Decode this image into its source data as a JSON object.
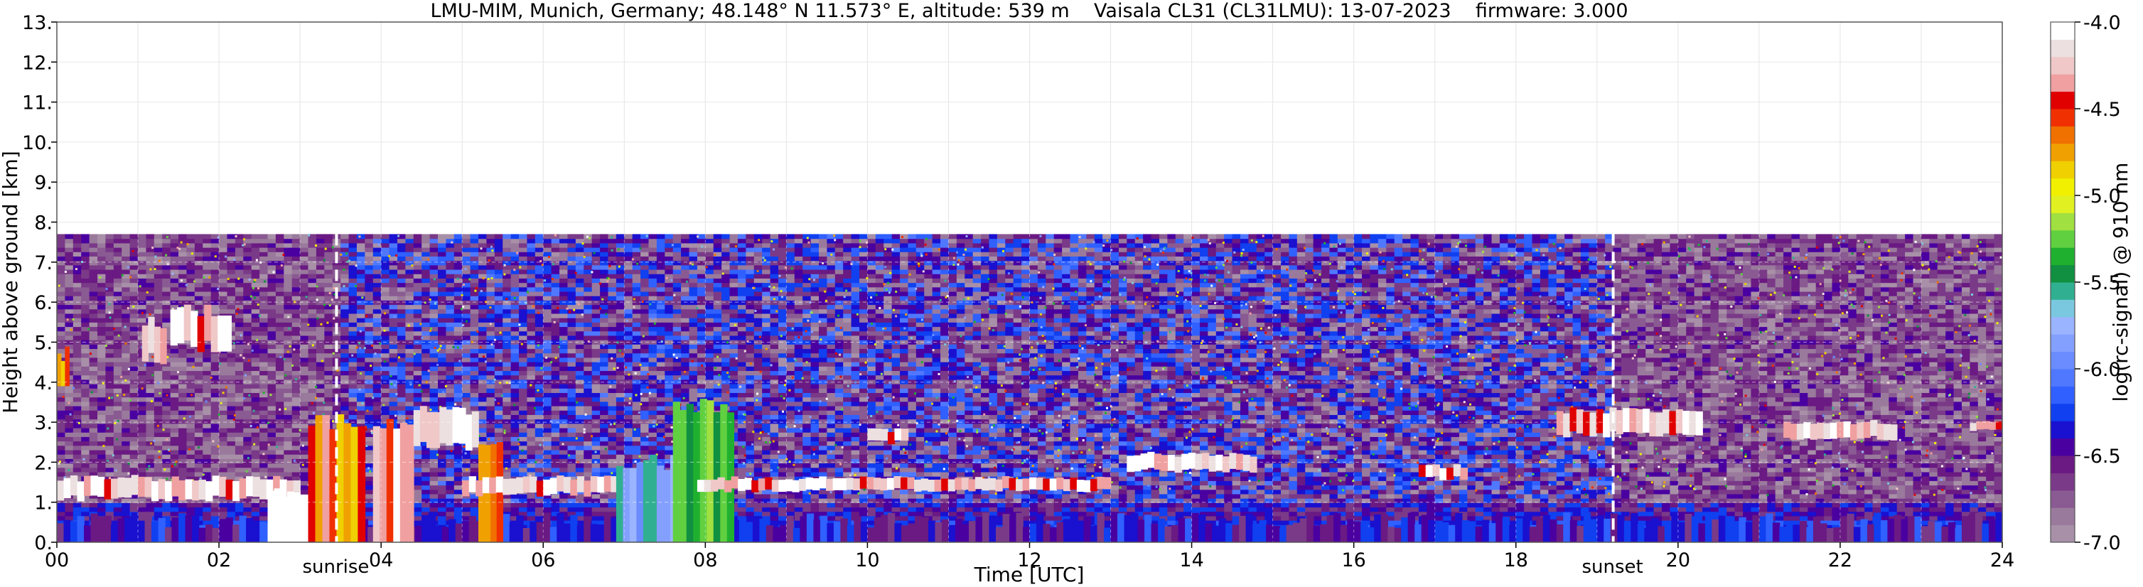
{
  "chart_data": {
    "type": "heatmap",
    "title": "LMU-MIM, Munich, Germany; 48.148° N 11.573° E, altitude: 539 m    Vaisala CL31 (CL31LMU): 13-07-2023    firmware: 3.000",
    "xlabel": "Time [UTC]",
    "ylabel": "Height above ground [km]",
    "xlim": [
      0,
      24
    ],
    "ylim": [
      0,
      13
    ],
    "x_ticks": [
      0,
      2,
      4,
      6,
      8,
      10,
      12,
      14,
      16,
      18,
      20,
      22,
      24
    ],
    "x_tick_labels": [
      "00",
      "02",
      "04",
      "06",
      "08",
      "10",
      "12",
      "14",
      "16",
      "18",
      "20",
      "22",
      "24"
    ],
    "y_ticks": [
      0,
      1,
      2,
      3,
      4,
      5,
      6,
      7,
      8,
      9,
      10,
      11,
      12,
      13
    ],
    "y_tick_labels": [
      "0.",
      "1.",
      "2.",
      "3.",
      "4.",
      "5.",
      "6.",
      "7.",
      "8.",
      "9.",
      "10.",
      "11.",
      "12.",
      "13."
    ],
    "data_top_km": 7.7,
    "colorbar": {
      "label": "log(rc-signal) @ 910 nm",
      "range": [
        -7.0,
        -4.0
      ],
      "ticks": [
        -7.0,
        -6.5,
        -6.0,
        -5.5,
        -5.0,
        -4.5,
        -4.0
      ],
      "tick_labels": [
        "-7.0",
        "-6.5",
        "-6.0",
        "-5.5",
        "-5.0",
        "-4.5",
        "-4.0"
      ],
      "colors": [
        "#a890a8",
        "#9a7a9c",
        "#8a5a92",
        "#7a3a88",
        "#6a1a82",
        "#4a00a0",
        "#1a10d0",
        "#1040f0",
        "#3060ff",
        "#5078ff",
        "#6a8cff",
        "#84a0ff",
        "#9ab4ff",
        "#7ac8e0",
        "#30b090",
        "#109040",
        "#20b030",
        "#60d040",
        "#a0e040",
        "#e0f020",
        "#f0f000",
        "#f0d000",
        "#f0a000",
        "#f07000",
        "#f03000",
        "#e00000",
        "#f0a0a0",
        "#f0c8c8",
        "#ece0e0",
        "#ffffff"
      ]
    },
    "events": [
      {
        "label": "sunrise",
        "time": 3.45
      },
      {
        "label": "sunset",
        "time": 19.2
      }
    ],
    "features": [
      {
        "kind": "boundary_layer_base",
        "t0": 0,
        "t1": 24,
        "h0": 0,
        "h1": 0.55,
        "level": -6.4
      },
      {
        "kind": "aerosol_layer",
        "t0": 0.0,
        "t1": 0.15,
        "h0": 3.9,
        "h1": 4.7,
        "level": -4.7
      },
      {
        "kind": "cloud_layer",
        "t0": 1.05,
        "t1": 1.35,
        "h0": 4.6,
        "h1": 5.5,
        "level": -4.2
      },
      {
        "kind": "cloud_layer",
        "t0": 1.4,
        "t1": 2.15,
        "h0": 4.9,
        "h1": 5.8,
        "level": -4.2
      },
      {
        "kind": "cloud_layer",
        "t0": 0.0,
        "t1": 3.0,
        "h0": 1.1,
        "h1": 1.6,
        "level": -4.2
      },
      {
        "kind": "rain",
        "t0": 2.6,
        "t1": 3.4,
        "h0": 0.0,
        "h1": 1.2,
        "level": -4.0
      },
      {
        "kind": "rain",
        "t0": 3.1,
        "t1": 3.8,
        "h0": 0.0,
        "h1": 3.0,
        "level": -4.6
      },
      {
        "kind": "rain",
        "t0": 3.9,
        "t1": 4.4,
        "h0": 0.0,
        "h1": 3.0,
        "level": -4.3
      },
      {
        "kind": "cloud_layer",
        "t0": 4.4,
        "t1": 5.2,
        "h0": 2.4,
        "h1": 3.3,
        "level": -4.2
      },
      {
        "kind": "rain",
        "t0": 5.2,
        "t1": 5.5,
        "h0": 0.0,
        "h1": 2.5,
        "level": -4.8
      },
      {
        "kind": "cloud_layer",
        "t0": 5.0,
        "t1": 8.0,
        "h0": 1.2,
        "h1": 1.6,
        "level": -4.2
      },
      {
        "kind": "rain",
        "t0": 6.9,
        "t1": 7.9,
        "h0": 0.0,
        "h1": 2.0,
        "level": -5.7
      },
      {
        "kind": "rain",
        "t0": 7.6,
        "t1": 8.35,
        "h0": 0.0,
        "h1": 3.4,
        "level": -5.2
      },
      {
        "kind": "cloud_layer",
        "t0": 7.9,
        "t1": 13.0,
        "h0": 1.3,
        "h1": 1.6,
        "level": -4.2
      },
      {
        "kind": "cloud_layer",
        "t0": 10.0,
        "t1": 10.5,
        "h0": 2.5,
        "h1": 2.8,
        "level": -4.2
      },
      {
        "kind": "cloud_layer",
        "t0": 13.2,
        "t1": 14.8,
        "h0": 1.8,
        "h1": 2.2,
        "level": -4.2
      },
      {
        "kind": "cloud_layer",
        "t0": 16.8,
        "t1": 17.4,
        "h0": 1.6,
        "h1": 1.9,
        "level": -4.2
      },
      {
        "kind": "cloud_layer",
        "t0": 18.5,
        "t1": 20.3,
        "h0": 2.7,
        "h1": 3.3,
        "level": -4.2
      },
      {
        "kind": "cloud_layer",
        "t0": 21.3,
        "t1": 22.7,
        "h0": 2.6,
        "h1": 3.0,
        "level": -4.2
      },
      {
        "kind": "cloud_layer",
        "t0": 23.6,
        "t1": 24.0,
        "h0": 2.8,
        "h1": 3.0,
        "level": -4.2
      }
    ]
  }
}
